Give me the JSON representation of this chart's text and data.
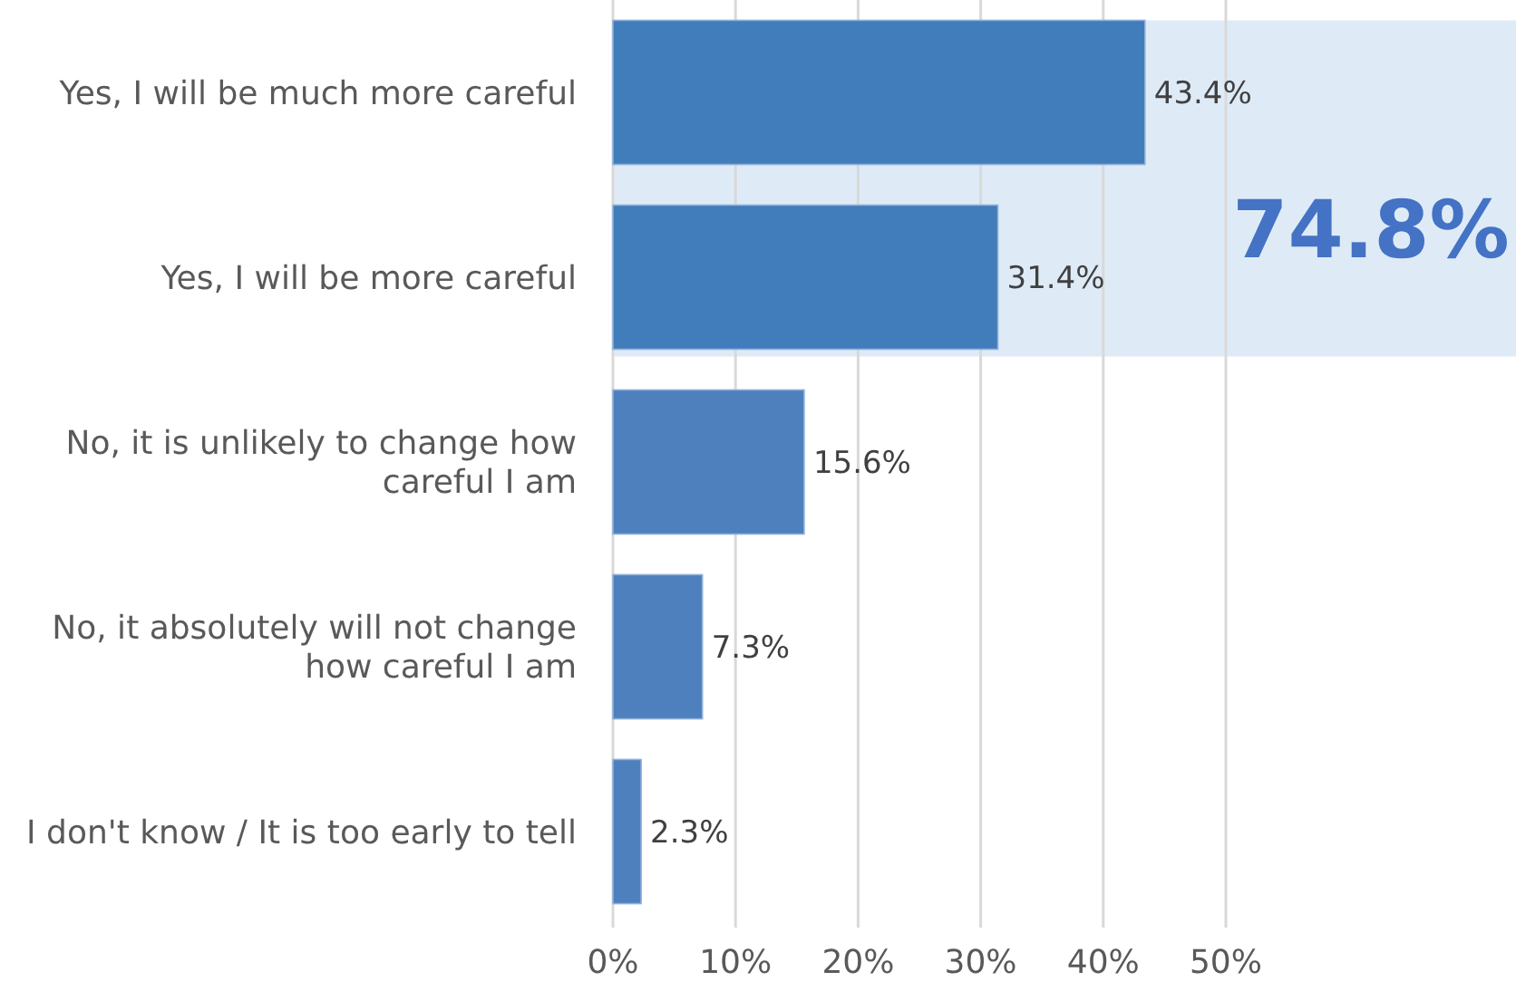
{
  "chart_data": {
    "type": "bar",
    "orientation": "horizontal",
    "categories": [
      "Yes, I will be much more careful",
      "Yes, I will be more careful",
      "No, it is unlikely to change how careful I am",
      "No, it absolutely will not change how careful I am",
      "I don't know / It is too early to tell"
    ],
    "values": [
      43.4,
      31.4,
      15.6,
      7.3,
      2.3
    ],
    "colors": [
      "#417cbb",
      "#417cbb",
      "#4e80bd",
      "#4e80bd",
      "#4e80bd"
    ],
    "value_labels": [
      "43.4%",
      "31.4%",
      "15.6%",
      "7.3%",
      "2.3%"
    ],
    "xlim": [
      0,
      50
    ],
    "xticks": [
      {
        "value": 0,
        "label": "0%"
      },
      {
        "value": 10,
        "label": "10%"
      },
      {
        "value": 20,
        "label": "20%"
      },
      {
        "value": 30,
        "label": "30%"
      },
      {
        "value": 40,
        "label": "40%"
      },
      {
        "value": 50,
        "label": "50%"
      }
    ],
    "grid": "x",
    "bands": [
      {
        "axis": "y",
        "from": "Yes, I will be much more careful",
        "to": "Yes, I will be more careful",
        "label": "74.8%",
        "color": "#deebf7"
      }
    ]
  }
}
